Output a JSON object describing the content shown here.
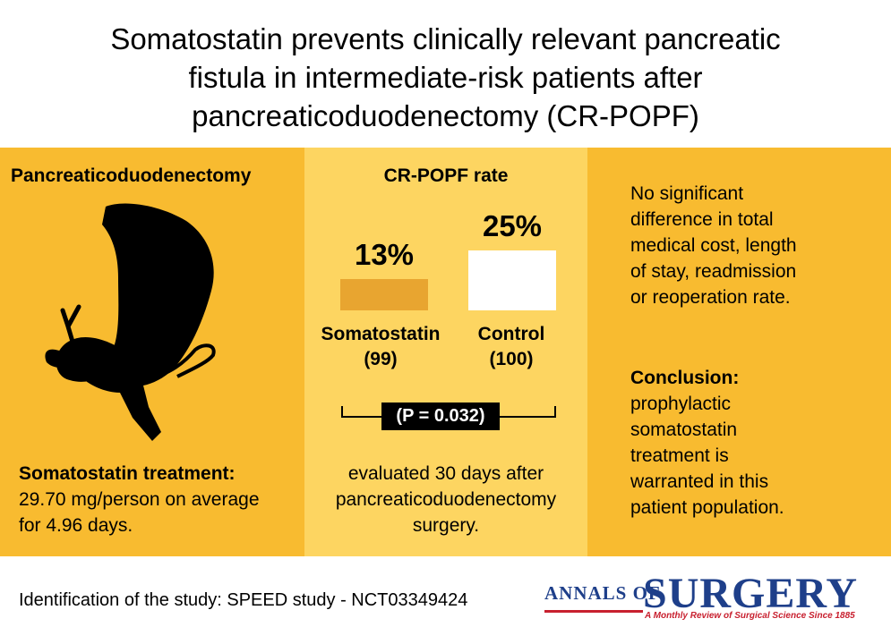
{
  "title": {
    "line1": "Somatostatin prevents clinically relevant pancreatic",
    "line2": "fistula in intermediate-risk patients after",
    "line3": "pancreaticoduodenectomy (CR-POPF)"
  },
  "panel1": {
    "heading": "Pancreaticoduodenectomy",
    "treatment_label": "Somatostatin treatment:",
    "treatment_line1": "29.70 mg/person on average",
    "treatment_line2": "for 4.96 days."
  },
  "panel2": {
    "heading": "CR-POPF rate",
    "groups": [
      {
        "name": "Somatostatin",
        "n": "(99)",
        "rate_label": "13%",
        "rate": 13
      },
      {
        "name": "Control",
        "n": "(100)",
        "rate_label": "25%",
        "rate": 25
      }
    ],
    "p_value": "(P = 0.032)",
    "footer_line1": "evaluated 30 days after",
    "footer_line2": "pancreaticoduodenectomy",
    "footer_line3": "surgery."
  },
  "panel3": {
    "top_lines": [
      "No significant",
      "difference in total",
      "medical cost, length",
      "of stay, readmission",
      "or reoperation rate."
    ],
    "conclusion_label": "Conclusion:",
    "conclusion_lines": [
      "prophylactic",
      "somatostatin",
      "treatment is",
      "warranted in this",
      "patient population."
    ]
  },
  "footer": {
    "study_id": "Identification of the study: SPEED study - NCT03349424",
    "journal_small": "ANNALS OF",
    "journal_big": "SURGERY",
    "journal_tagline": "A Monthly Review of Surgical Science Since 1885"
  },
  "colors": {
    "panel_dark": "#f8bb30",
    "panel_light": "#fdd561",
    "bar_somatostatin": "#e8a530",
    "bar_control": "#ffffff",
    "logo_blue": "#1e3f8a",
    "logo_red": "#c8202f"
  }
}
